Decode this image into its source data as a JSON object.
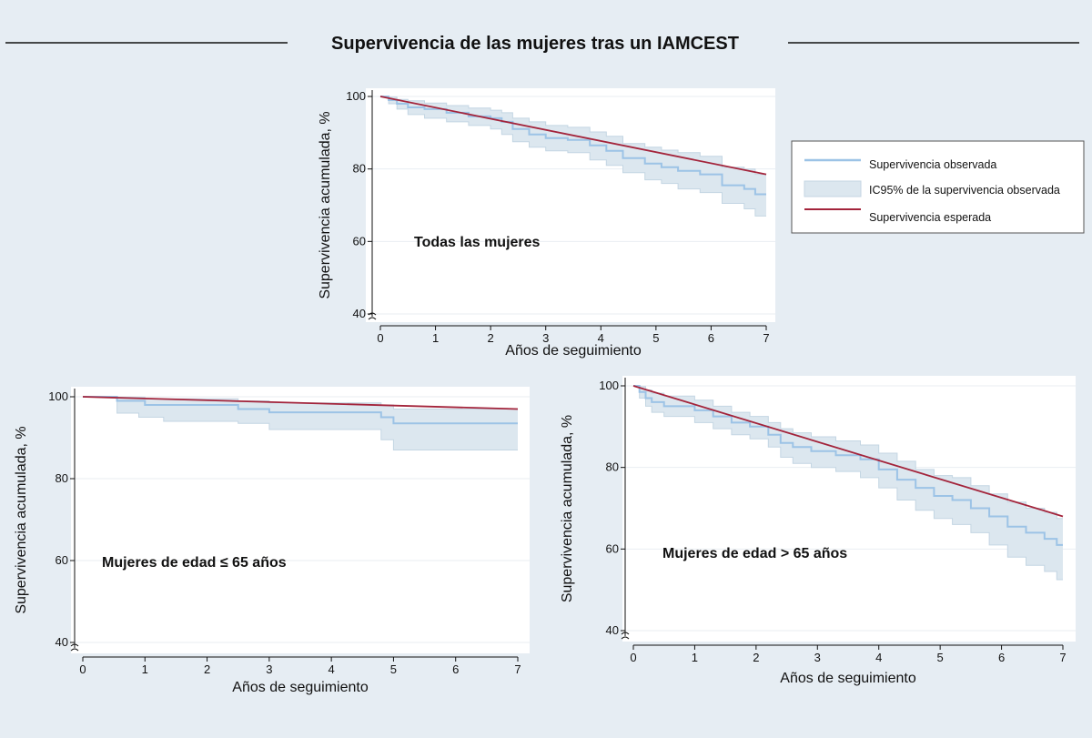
{
  "figure": {
    "title": "Supervivencia de las mujeres tras un IAMCEST"
  },
  "legend": {
    "observed": "Supervivencia observada",
    "ci": "IC95% de la supervivencia observada",
    "expected": "Supervivencia esperada"
  },
  "colors": {
    "background": "#e6edf3",
    "observed": "#9cc3e6",
    "ci_fill": "#dce7ef",
    "ci_edge": "#c4d6e3",
    "expected": "#a3243b"
  },
  "chart_data": [
    {
      "type": "line",
      "id": "all",
      "annotation": "Todas las mujeres",
      "xlabel": "Años de seguimiento",
      "ylabel": "Supervivencia acumulada, %",
      "xlim": [
        0,
        7
      ],
      "ylim": [
        40,
        100
      ],
      "xticks": [
        "0",
        "1",
        "2",
        "3",
        "4",
        "5",
        "6",
        "7"
      ],
      "yticks": [
        "40",
        "60",
        "80",
        "100"
      ],
      "series": [
        {
          "name": "Supervivencia observada",
          "kind": "step",
          "x": [
            0,
            0.15,
            0.3,
            0.5,
            0.8,
            1.2,
            1.6,
            2.0,
            2.2,
            2.4,
            2.7,
            3.0,
            3.4,
            3.8,
            4.1,
            4.4,
            4.8,
            5.1,
            5.4,
            5.8,
            6.2,
            6.6,
            6.8,
            7.0
          ],
          "y": [
            100,
            99,
            98,
            97,
            96.5,
            95.5,
            94.5,
            94,
            93,
            91,
            89.5,
            88.5,
            88,
            86.5,
            85,
            83,
            81.5,
            80.5,
            79.5,
            78.5,
            75.5,
            74.5,
            73,
            73
          ]
        },
        {
          "name": "IC95% inferior",
          "kind": "step",
          "x": [
            0,
            0.15,
            0.3,
            0.5,
            0.8,
            1.2,
            1.6,
            2.0,
            2.2,
            2.4,
            2.7,
            3.0,
            3.4,
            3.8,
            4.1,
            4.4,
            4.8,
            5.1,
            5.4,
            5.8,
            6.2,
            6.6,
            6.8,
            7.0
          ],
          "y": [
            100,
            98,
            96.5,
            95,
            94,
            93,
            92,
            91,
            89.5,
            87.5,
            86,
            85,
            84.5,
            82.5,
            81,
            79,
            77,
            76,
            74.5,
            73.5,
            70.5,
            69,
            67,
            67
          ]
        },
        {
          "name": "IC95% superior",
          "kind": "step",
          "x": [
            0,
            0.15,
            0.3,
            0.5,
            0.8,
            1.2,
            1.6,
            2.0,
            2.2,
            2.4,
            2.7,
            3.0,
            3.4,
            3.8,
            4.1,
            4.4,
            4.8,
            5.1,
            5.4,
            5.8,
            6.2,
            6.6,
            6.8,
            7.0
          ],
          "y": [
            100,
            99.8,
            99.2,
            98.8,
            98.2,
            97.5,
            96.8,
            96.2,
            95.5,
            94,
            93,
            92,
            91.5,
            90.2,
            89,
            87,
            86,
            85.2,
            84.5,
            83.5,
            80.5,
            80,
            78.5,
            78.5
          ]
        },
        {
          "name": "Supervivencia esperada",
          "kind": "line",
          "x": [
            0,
            7
          ],
          "y": [
            100,
            78.5
          ]
        }
      ]
    },
    {
      "type": "line",
      "id": "young",
      "annotation": "Mujeres de edad ≤ 65 años",
      "xlabel": "Años de seguimiento",
      "ylabel": "Supervivencia acumulada, %",
      "xlim": [
        0,
        7
      ],
      "ylim": [
        40,
        100
      ],
      "xticks": [
        "0",
        "1",
        "2",
        "3",
        "4",
        "5",
        "6",
        "7"
      ],
      "yticks": [
        "40",
        "60",
        "80",
        "100"
      ],
      "series": [
        {
          "name": "Supervivencia observada",
          "kind": "step",
          "x": [
            0,
            0.55,
            1.0,
            2.5,
            3.0,
            4.8,
            5.0,
            7.0
          ],
          "y": [
            100,
            99,
            98,
            97,
            96.2,
            95,
            93.5,
            93.5
          ]
        },
        {
          "name": "IC95% inferior",
          "kind": "step",
          "x": [
            0,
            0.55,
            0.9,
            1.3,
            2.5,
            3.0,
            4.8,
            5.0,
            7.0
          ],
          "y": [
            100,
            96,
            95,
            94,
            93.5,
            92,
            89.5,
            87,
            87
          ]
        },
        {
          "name": "IC95% superior",
          "kind": "step",
          "x": [
            0,
            0.55,
            1.0,
            2.5,
            3.0,
            4.8,
            5.0,
            7.0
          ],
          "y": [
            100,
            99.9,
            99.5,
            99,
            98.5,
            98,
            97,
            97
          ]
        },
        {
          "name": "Supervivencia esperada",
          "kind": "line",
          "x": [
            0,
            7
          ],
          "y": [
            100,
            97
          ]
        }
      ]
    },
    {
      "type": "line",
      "id": "old",
      "annotation": "Mujeres de edad > 65 años",
      "xlabel": "Años de seguimiento",
      "ylabel": "Supervivencia acumulada, %",
      "xlim": [
        0,
        7
      ],
      "ylim": [
        40,
        100
      ],
      "xticks": [
        "0",
        "1",
        "2",
        "3",
        "4",
        "5",
        "6",
        "7"
      ],
      "yticks": [
        "40",
        "60",
        "80",
        "100"
      ],
      "series": [
        {
          "name": "Supervivencia observada",
          "kind": "step",
          "x": [
            0,
            0.1,
            0.2,
            0.3,
            0.5,
            1.0,
            1.3,
            1.6,
            1.9,
            2.2,
            2.4,
            2.6,
            2.9,
            3.3,
            3.7,
            4.0,
            4.3,
            4.6,
            4.9,
            5.2,
            5.5,
            5.8,
            6.1,
            6.4,
            6.7,
            6.9,
            7.0
          ],
          "y": [
            100,
            98.5,
            97,
            96,
            95,
            94,
            92.5,
            91,
            90,
            88,
            86,
            85,
            84,
            83,
            82,
            79.5,
            77,
            75,
            73,
            72,
            70,
            68,
            65.5,
            64,
            62.5,
            61,
            61
          ]
        },
        {
          "name": "IC95% inferior",
          "kind": "step",
          "x": [
            0,
            0.1,
            0.2,
            0.3,
            0.5,
            1.0,
            1.3,
            1.6,
            1.9,
            2.2,
            2.4,
            2.6,
            2.9,
            3.3,
            3.7,
            4.0,
            4.3,
            4.6,
            4.9,
            5.2,
            5.5,
            5.8,
            6.1,
            6.4,
            6.7,
            6.9,
            7.0
          ],
          "y": [
            100,
            97,
            95,
            93.5,
            92.5,
            91,
            89.5,
            88,
            87,
            85,
            82.5,
            81,
            80,
            79,
            77.5,
            75,
            72,
            69.5,
            67.5,
            66,
            64,
            61,
            58,
            56,
            54.5,
            52.5,
            52.5
          ]
        },
        {
          "name": "IC95% superior",
          "kind": "step",
          "x": [
            0,
            0.1,
            0.2,
            0.3,
            0.5,
            1.0,
            1.3,
            1.6,
            1.9,
            2.2,
            2.4,
            2.6,
            2.9,
            3.3,
            3.7,
            4.0,
            4.3,
            4.6,
            4.9,
            5.2,
            5.5,
            5.8,
            6.1,
            6.4,
            6.7,
            6.9,
            7.0
          ],
          "y": [
            100,
            99.8,
            99,
            98.2,
            97.5,
            96.5,
            95,
            93.5,
            92.5,
            91,
            89.5,
            88.5,
            87.5,
            86.5,
            85.5,
            83.5,
            81.5,
            79.5,
            78,
            77.5,
            75.5,
            73.5,
            71.5,
            70,
            69,
            67.5,
            67.5
          ]
        },
        {
          "name": "Supervivencia esperada",
          "kind": "line",
          "x": [
            0,
            7
          ],
          "y": [
            100,
            68
          ]
        }
      ]
    }
  ]
}
